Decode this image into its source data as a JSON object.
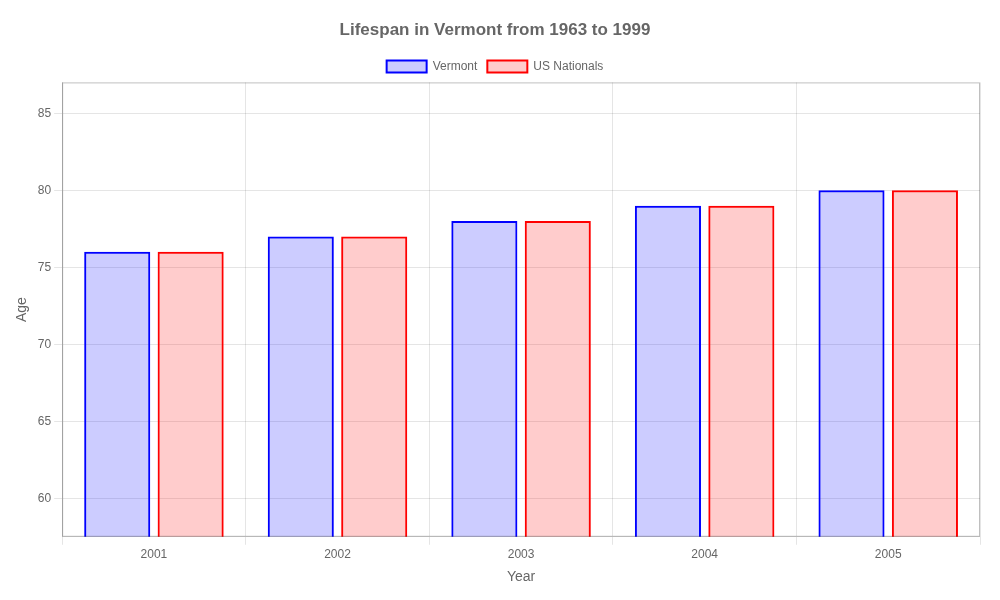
{
  "chart_data": {
    "type": "bar",
    "title": "Lifespan in Vermont from 1963 to 1999",
    "xlabel": "Year",
    "ylabel": "Age",
    "categories": [
      "2001",
      "2002",
      "2003",
      "2004",
      "2005"
    ],
    "series": [
      {
        "name": "Vermont",
        "color": "#0000ff",
        "values": [
          76,
          77,
          78,
          79,
          80
        ]
      },
      {
        "name": "US Nationals",
        "color": "#ff0000",
        "values": [
          76,
          77,
          78,
          79,
          80
        ]
      }
    ],
    "ylim": [
      57.5,
      87
    ],
    "yticks": [
      60,
      65,
      70,
      75,
      80,
      85
    ],
    "grid": true,
    "legend": "top"
  }
}
